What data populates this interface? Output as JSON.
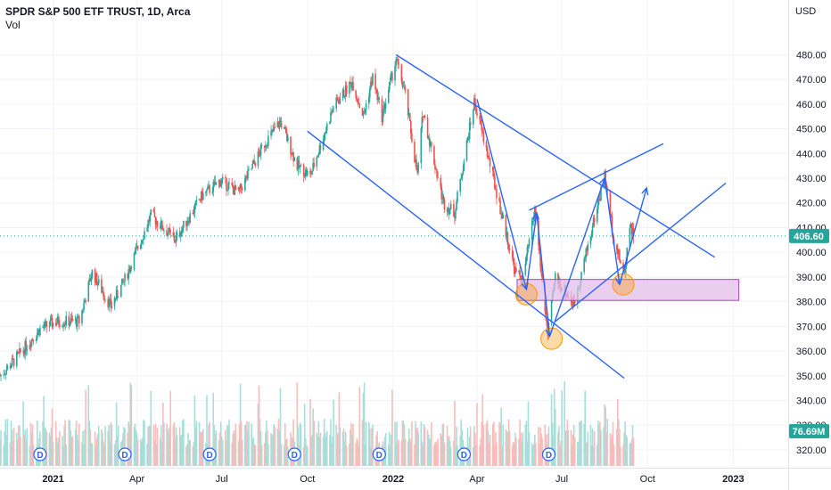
{
  "legend": {
    "title": "SPDR S&P 500 ETF TRUST, 1D, Arca",
    "volume_label": "Vol"
  },
  "colors": {
    "up": "#26a69a",
    "down": "#ef5350",
    "volume_up": "#a8ded9",
    "volume_down": "#f7bdbb",
    "drawing": "#2962ff",
    "zone_fill": "#e1bee7",
    "zone_stroke": "#ab47bc",
    "circle": "#ff9800",
    "last_price_tag": "#26a69a",
    "dividend_marker": "#2962ff"
  },
  "chart_data": {
    "type": "candlestick",
    "symbol": "SPDR S&P 500 ETF TRUST",
    "interval": "1D",
    "exchange": "Arca",
    "currency": "USD",
    "y_ticks": [
      480,
      470,
      460,
      450,
      440,
      430,
      420,
      410,
      400,
      390,
      380,
      370,
      360,
      350,
      340,
      330,
      320
    ],
    "ylim": [
      316,
      487
    ],
    "x_ticks": [
      "2021",
      "Apr",
      "Jul",
      "Oct",
      "2022",
      "Apr",
      "Jul",
      "Oct",
      "2023"
    ],
    "xlim": [
      "2020-11-05",
      "2023-03-01"
    ],
    "last_price": "406.60",
    "volume_value": "76.69M",
    "dividend_marker_label": "D",
    "dividend_dates": [
      "2020-12-18",
      "2021-03-19",
      "2021-06-18",
      "2021-09-17",
      "2021-12-17",
      "2022-03-18",
      "2022-06-17"
    ],
    "price_path": [
      [
        "2020-11-05",
        350
      ],
      [
        "2020-11-20",
        356
      ],
      [
        "2020-12-18",
        369
      ],
      [
        "2021-01-05",
        372
      ],
      [
        "2021-01-29",
        372
      ],
      [
        "2021-02-12",
        392
      ],
      [
        "2021-03-04",
        378
      ],
      [
        "2021-03-19",
        389
      ],
      [
        "2021-04-16",
        415
      ],
      [
        "2021-05-12",
        405
      ],
      [
        "2021-06-10",
        423
      ],
      [
        "2021-06-30",
        429
      ],
      [
        "2021-07-19",
        424
      ],
      [
        "2021-08-16",
        444
      ],
      [
        "2021-09-02",
        453
      ],
      [
        "2021-09-20",
        435
      ],
      [
        "2021-10-04",
        431
      ],
      [
        "2021-10-29",
        459
      ],
      [
        "2021-11-18",
        469
      ],
      [
        "2021-11-30",
        455
      ],
      [
        "2021-12-10",
        471
      ],
      [
        "2021-12-20",
        455
      ],
      [
        "2022-01-04",
        478
      ],
      [
        "2022-01-14",
        464
      ],
      [
        "2022-01-27",
        431
      ],
      [
        "2022-02-02",
        457
      ],
      [
        "2022-02-24",
        420
      ],
      [
        "2022-03-08",
        416
      ],
      [
        "2022-03-29",
        461
      ],
      [
        "2022-04-14",
        437
      ],
      [
        "2022-04-29",
        413
      ],
      [
        "2022-05-12",
        392
      ],
      [
        "2022-05-20",
        389
      ],
      [
        "2022-06-02",
        417
      ],
      [
        "2022-06-16",
        366
      ],
      [
        "2022-06-24",
        390
      ],
      [
        "2022-07-14",
        379
      ],
      [
        "2022-08-16",
        431
      ],
      [
        "2022-08-26",
        405
      ],
      [
        "2022-09-06",
        391
      ],
      [
        "2022-09-12",
        412
      ],
      [
        "2022-09-16",
        406.6
      ]
    ],
    "volume_ylim": [
      0,
      250
    ],
    "drawings": {
      "lines": [
        [
          [
            "2021-10-01",
            449
          ],
          [
            "2022-09-06",
            349
          ]
        ],
        [
          [
            "2022-01-04",
            480
          ],
          [
            "2022-12-12",
            398
          ]
        ],
        [
          [
            "2022-06-24",
            372
          ],
          [
            "2022-12-24",
            428
          ]
        ],
        [
          [
            "2022-05-27",
            417
          ],
          [
            "2022-10-18",
            444
          ]
        ],
        [
          [
            "2022-04-01",
            462
          ],
          [
            "2022-05-24",
            385
          ],
          [
            "2022-06-04",
            416
          ],
          [
            "2022-06-18",
            366
          ],
          [
            "2022-08-16",
            430
          ],
          [
            "2022-09-01",
            387
          ],
          [
            "2022-09-30",
            426
          ]
        ]
      ],
      "support_zone": {
        "from": "2022-05-14",
        "to": "2023-01-07",
        "low": 380.5,
        "high": 389
      },
      "circles": [
        {
          "date": "2022-05-24",
          "price": 383
        },
        {
          "date": "2022-06-20",
          "price": 365
        },
        {
          "date": "2022-09-05",
          "price": 387
        }
      ]
    }
  }
}
